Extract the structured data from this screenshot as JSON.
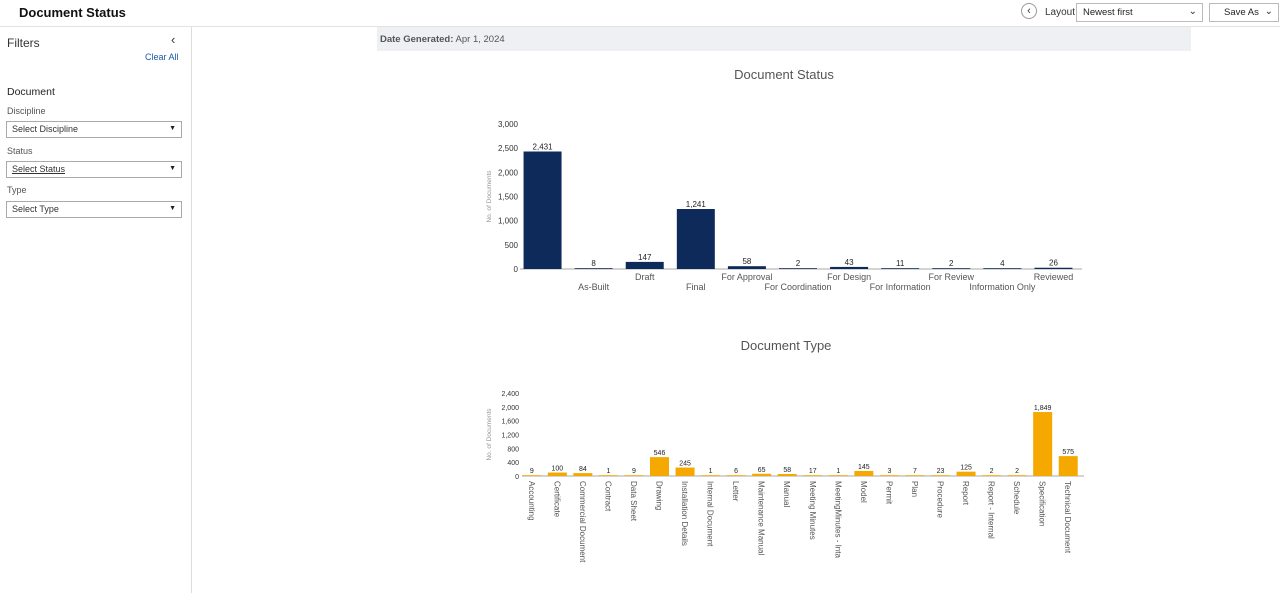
{
  "header": {
    "title": "Document Status",
    "layout_label": "Layout",
    "layout_value": "Newest first",
    "save_as": "Save As"
  },
  "sidebar": {
    "title": "Filters",
    "clear_all": "Clear All",
    "section": "Document",
    "filters": [
      {
        "label": "Discipline",
        "placeholder": "Select Discipline"
      },
      {
        "label": "Status",
        "placeholder": "Select Status"
      },
      {
        "label": "Type",
        "placeholder": "Select Type"
      }
    ]
  },
  "report": {
    "date_label": "Date Generated:",
    "date_value": "Apr 1, 2024"
  },
  "chart_data": [
    {
      "type": "bar",
      "title": "Document Status",
      "ylabel": "No. of Documents",
      "ylim": [
        0,
        3000
      ],
      "yticks": [
        "0",
        "500",
        "1,000",
        "1,500",
        "2,000",
        "2,500",
        "3,000"
      ],
      "categories": [
        "",
        "As-Built",
        "Draft",
        "Final",
        "For Approval",
        "For Coordination",
        "For Design",
        "For Information",
        "For Review",
        "Information Only",
        "Reviewed"
      ],
      "values": [
        2431,
        8,
        147,
        1241,
        58,
        2,
        43,
        11,
        2,
        4,
        26
      ],
      "labels": [
        "2,431",
        "8",
        "147",
        "1,241",
        "58",
        "2",
        "43",
        "11",
        "2",
        "4",
        "26"
      ],
      "color": "#0e2a5a"
    },
    {
      "type": "bar",
      "title": "Document Type",
      "ylabel": "No. of Documents",
      "ylim": [
        0,
        2400
      ],
      "yticks": [
        "0",
        "400",
        "800",
        "1,200",
        "1,600",
        "2,000",
        "2,400"
      ],
      "categories": [
        "Accounting",
        "Certificate",
        "Commercial Document",
        "Contract",
        "Data Sheet",
        "Drawing",
        "Installation Details",
        "Internal Document",
        "Letter",
        "Maintenance Manual",
        "Manual",
        "Meeting Minutes",
        "MeetingMinutes - Inta",
        "Model",
        "Permit",
        "Plan",
        "Procedure",
        "Report",
        "Report - Internal",
        "Schedule",
        "Specification",
        "Technical Document"
      ],
      "values": [
        9,
        100,
        84,
        1,
        9,
        546,
        245,
        1,
        6,
        65,
        58,
        17,
        1,
        145,
        3,
        7,
        23,
        125,
        2,
        2,
        1849,
        575
      ],
      "labels": [
        "9",
        "100",
        "84",
        "1",
        "9",
        "546",
        "245",
        "1",
        "6",
        "65",
        "58",
        "17",
        "1",
        "145",
        "3",
        "7",
        "23",
        "125",
        "2",
        "2",
        "1,849",
        "575"
      ],
      "color": "#f5a800"
    }
  ]
}
